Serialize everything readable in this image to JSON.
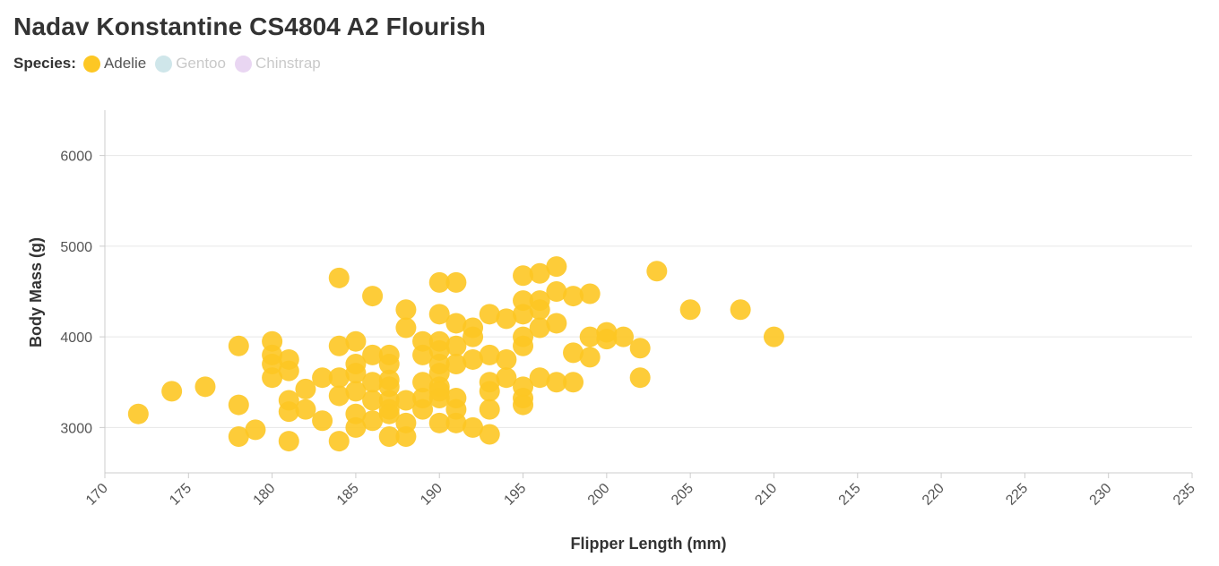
{
  "title": "Nadav Konstantine CS4804 A2 Flourish",
  "legend": {
    "title": "Species:",
    "items": [
      {
        "label": "Adelie",
        "color": "#fdc724",
        "active": true
      },
      {
        "label": "Gentoo",
        "color": "#cfe6ea",
        "active": false
      },
      {
        "label": "Chinstrap",
        "color": "#e9d6f2",
        "active": false
      }
    ]
  },
  "chart_data": {
    "type": "scatter",
    "xlabel": "Flipper Length (mm)",
    "ylabel": "Body Mass (g)",
    "xlim": [
      170,
      235
    ],
    "ylim": [
      2500,
      6500
    ],
    "xticks": [
      170,
      175,
      180,
      185,
      190,
      195,
      200,
      205,
      210,
      215,
      220,
      225,
      230,
      235
    ],
    "yticks": [
      3000,
      4000,
      5000,
      6000
    ],
    "grid": "horizontal",
    "legend_position": "top-left",
    "series": [
      {
        "name": "Adelie",
        "color": "#fdc724",
        "points": [
          [
            172,
            3150
          ],
          [
            174,
            3400
          ],
          [
            176,
            3450
          ],
          [
            178,
            3900
          ],
          [
            178,
            3250
          ],
          [
            178,
            2900
          ],
          [
            179,
            2975
          ],
          [
            180,
            3950
          ],
          [
            180,
            3800
          ],
          [
            180,
            3700
          ],
          [
            180,
            3550
          ],
          [
            181,
            3750
          ],
          [
            181,
            3625
          ],
          [
            181,
            3300
          ],
          [
            181,
            3175
          ],
          [
            181,
            2850
          ],
          [
            182,
            3425
          ],
          [
            182,
            3200
          ],
          [
            183,
            3550
          ],
          [
            183,
            3075
          ],
          [
            184,
            4650
          ],
          [
            184,
            3900
          ],
          [
            184,
            3550
          ],
          [
            184,
            3350
          ],
          [
            184,
            2850
          ],
          [
            185,
            3950
          ],
          [
            185,
            3700
          ],
          [
            185,
            3600
          ],
          [
            185,
            3400
          ],
          [
            185,
            3150
          ],
          [
            185,
            3000
          ],
          [
            186,
            4450
          ],
          [
            186,
            3800
          ],
          [
            186,
            3500
          ],
          [
            186,
            3300
          ],
          [
            186,
            3075
          ],
          [
            187,
            3800
          ],
          [
            187,
            3700
          ],
          [
            187,
            3525
          ],
          [
            187,
            3450
          ],
          [
            187,
            3300
          ],
          [
            187,
            3200
          ],
          [
            187,
            3150
          ],
          [
            187,
            2900
          ],
          [
            188,
            4300
          ],
          [
            188,
            4100
          ],
          [
            188,
            3300
          ],
          [
            188,
            3050
          ],
          [
            188,
            2900
          ],
          [
            189,
            3950
          ],
          [
            189,
            3800
          ],
          [
            189,
            3500
          ],
          [
            189,
            3325
          ],
          [
            189,
            3200
          ],
          [
            190,
            4600
          ],
          [
            190,
            4250
          ],
          [
            190,
            3950
          ],
          [
            190,
            3850
          ],
          [
            190,
            3700
          ],
          [
            190,
            3600
          ],
          [
            190,
            3450
          ],
          [
            190,
            3400
          ],
          [
            190,
            3325
          ],
          [
            190,
            3050
          ],
          [
            191,
            4600
          ],
          [
            191,
            4150
          ],
          [
            191,
            3900
          ],
          [
            191,
            3700
          ],
          [
            191,
            3325
          ],
          [
            191,
            3200
          ],
          [
            191,
            3050
          ],
          [
            192,
            4100
          ],
          [
            192,
            4000
          ],
          [
            192,
            3750
          ],
          [
            192,
            3000
          ],
          [
            193,
            4250
          ],
          [
            193,
            3800
          ],
          [
            193,
            3500
          ],
          [
            193,
            3400
          ],
          [
            193,
            3200
          ],
          [
            193,
            2925
          ],
          [
            194,
            4200
          ],
          [
            194,
            3750
          ],
          [
            194,
            3550
          ],
          [
            195,
            4675
          ],
          [
            195,
            4400
          ],
          [
            195,
            4250
          ],
          [
            195,
            4000
          ],
          [
            195,
            3900
          ],
          [
            195,
            3450
          ],
          [
            195,
            3325
          ],
          [
            195,
            3250
          ],
          [
            196,
            4700
          ],
          [
            196,
            4400
          ],
          [
            196,
            4300
          ],
          [
            196,
            4100
          ],
          [
            196,
            3550
          ],
          [
            197,
            4775
          ],
          [
            197,
            4500
          ],
          [
            197,
            4150
          ],
          [
            197,
            3500
          ],
          [
            198,
            4450
          ],
          [
            198,
            3825
          ],
          [
            198,
            3500
          ],
          [
            199,
            4475
          ],
          [
            199,
            4000
          ],
          [
            199,
            3775
          ],
          [
            200,
            4050
          ],
          [
            200,
            3975
          ],
          [
            201,
            4000
          ],
          [
            202,
            3875
          ],
          [
            202,
            3550
          ],
          [
            203,
            4725
          ],
          [
            205,
            4300
          ],
          [
            208,
            4300
          ],
          [
            210,
            4000
          ]
        ]
      }
    ]
  }
}
